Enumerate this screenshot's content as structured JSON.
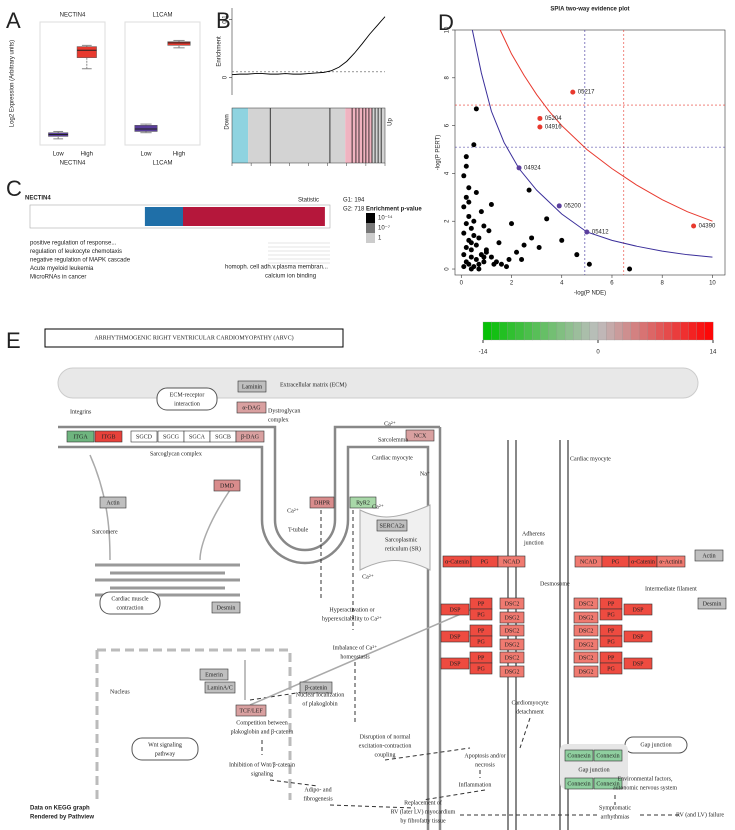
{
  "panel_labels": [
    "A",
    "B",
    "C",
    "D",
    "E"
  ],
  "chart_data": [
    {
      "type": "box",
      "title": "NECTIN4",
      "ylabel": "Log2 Expression (Arbitrary units)",
      "xlabel": "NECTIN4",
      "categories": [
        "Low",
        "High"
      ],
      "ylim": [
        0,
        10
      ],
      "boxes": [
        {
          "low": 0.5,
          "q1": 0.7,
          "median": 0.85,
          "q3": 1.0,
          "high": 1.1,
          "color": "#5a3e9a"
        },
        {
          "low": 6.2,
          "q1": 7.1,
          "median": 7.7,
          "q3": 8.0,
          "high": 8.1,
          "color": "#e8392e"
        }
      ]
    },
    {
      "type": "box",
      "title": "L1CAM",
      "xlabel": "L1CAM",
      "categories": [
        "Low",
        "High"
      ],
      "ylim": [
        0,
        10
      ],
      "boxes": [
        {
          "low": 1.0,
          "q1": 1.1,
          "median": 1.3,
          "q3": 1.6,
          "high": 1.7,
          "color": "#5a3e9a"
        },
        {
          "low": 7.9,
          "q1": 8.1,
          "median": 8.3,
          "q3": 8.4,
          "high": 8.5,
          "color": "#e8392e"
        }
      ]
    },
    {
      "type": "line",
      "ylabel": "Enrichment",
      "xlabel": "Statistic",
      "xlim": [
        0,
        20
      ],
      "x": [
        0,
        1,
        2,
        3,
        4,
        5,
        6,
        7,
        8,
        9,
        10,
        11,
        12,
        13,
        14,
        15,
        16,
        17,
        18,
        19,
        20
      ],
      "values": [
        0.005,
        0.006,
        0.006,
        0.007,
        0.007,
        0.006,
        0.006,
        0.007,
        0.006,
        0.006,
        0.007,
        0.008,
        0.009,
        0.012,
        0.018,
        0.028,
        0.042,
        0.058,
        0.075,
        0.09,
        0.105
      ],
      "ylim": [
        -0.03,
        0.12
      ],
      "yticks": [
        0,
        0.1
      ],
      "threshold": 0.01,
      "barcode": {
        "hits": [
          5.0,
          12.8,
          15.7,
          16.2,
          16.6,
          17.1,
          17.5,
          17.9,
          18.3,
          18.7,
          19.1,
          19.5
        ],
        "bands": [
          {
            "from": 0,
            "to": 2.1,
            "color": "#8fd3e0"
          },
          {
            "from": 2.1,
            "to": 14.8,
            "color": "#d3d3d3"
          },
          {
            "from": 14.8,
            "to": 18.3,
            "color": "#f0b3c0"
          },
          {
            "from": 18.3,
            "to": 20,
            "color": "#d3d3d3"
          }
        ],
        "down_label": "Down",
        "up_label": "Up"
      }
    },
    {
      "type": "scatter",
      "title": "SPIA two-way evidence plot",
      "xlabel": "-log(P NDE)",
      "ylabel": "-log(P PERT)",
      "xlim": [
        -0.25,
        10.5
      ],
      "ylim": [
        -0.25,
        10
      ],
      "xticks": [
        0,
        2,
        4,
        6,
        8,
        10
      ],
      "yticks": [
        0,
        2,
        4,
        6,
        8,
        10
      ],
      "series": [
        {
          "color": "#000000",
          "x": [
            0.1,
            0.2,
            0.3,
            0.1,
            0.4,
            0.5,
            0.2,
            0.6,
            0.3,
            0.1,
            0.7,
            0.4,
            0.2,
            0.8,
            0.5,
            0.3,
            0.1,
            0.9,
            0.6,
            0.2,
            1.0,
            0.4,
            0.3,
            1.2,
            0.5,
            0.1,
            1.4,
            0.7,
            0.2,
            1.6,
            0.8,
            0.4,
            1.9,
            0.3,
            2.2,
            1.1,
            0.6,
            2.5,
            0.2,
            1.3,
            2.8,
            0.9,
            3.1,
            1.5,
            0.5,
            2.0,
            3.4,
            1.8,
            2.4,
            4.0,
            0.7,
            1.0,
            2.7,
            0.6,
            1.2,
            0.4,
            0.9,
            5.1,
            6.7,
            4.6
          ],
          "values": [
            0.1,
            0.3,
            0.2,
            0.6,
            0.5,
            0.1,
            0.9,
            0.4,
            1.2,
            1.5,
            0.2,
            0.8,
            1.9,
            0.6,
            1.4,
            2.2,
            2.6,
            0.3,
            1.0,
            3.0,
            0.8,
            1.7,
            3.4,
            0.5,
            2.0,
            3.9,
            0.3,
            1.3,
            4.3,
            0.2,
            2.4,
            1.1,
            0.4,
            2.8,
            0.7,
            1.6,
            3.2,
            1.0,
            4.7,
            0.2,
            1.3,
            0.5,
            0.9,
            1.1,
            5.2,
            1.9,
            2.1,
            0.1,
            0.4,
            1.2,
            0.0,
            0.7,
            3.3,
            6.7,
            2.7,
            0.0,
            1.8,
            0.2,
            0.0,
            0.6
          ]
        },
        {
          "x": [
            4.44,
            3.13,
            3.13,
            2.3,
            3.9,
            5.0,
            9.25
          ],
          "values": [
            7.4,
            6.3,
            5.94,
            4.23,
            2.64,
            1.55,
            1.8
          ],
          "labels": [
            "05217",
            "05204",
            "04916",
            "04924",
            "05200",
            "05412",
            "04390"
          ],
          "colors": [
            "#e8392e",
            "#e8392e",
            "#e8392e",
            "#5b3f9e",
            "#5b3f9e",
            "#5b3f9e",
            "#e8392e"
          ]
        }
      ],
      "curves": [
        {
          "color": "#3a2e9a",
          "x": [
            0.44,
            0.8,
            1.2,
            1.7,
            2.3,
            3,
            4,
            5,
            6,
            7,
            8,
            9,
            10
          ],
          "values": [
            10,
            8.2,
            6.6,
            5.3,
            4.2,
            3.3,
            2.3,
            1.55,
            1.2,
            0.95,
            0.75,
            0.6,
            0.5
          ]
        },
        {
          "color": "#e8392e",
          "x": [
            1.55,
            2,
            2.5,
            3,
            3.5,
            4,
            5,
            6,
            7,
            8,
            9,
            10
          ],
          "values": [
            10,
            9,
            8.1,
            7.3,
            6.6,
            6,
            5,
            4.2,
            3.5,
            2.9,
            2.4,
            2.0
          ]
        }
      ],
      "vlines": [
        {
          "value": 4.92,
          "color": "#3a2e9a"
        },
        {
          "value": 6.47,
          "color": "#e8392e"
        }
      ],
      "hlines": [
        {
          "value": 5.1,
          "color": "#3a2e9a"
        },
        {
          "value": 6.86,
          "color": "#e8392e"
        }
      ]
    }
  ],
  "enrichment": {
    "title": "NECTIN4",
    "groups": [
      "G1: 194",
      "G2: 718"
    ],
    "legend_title": "Enrichment p-value",
    "legend": [
      {
        "label": "10⁻¹⁴",
        "color": "#000000"
      },
      {
        "label": "10⁻⁷",
        "color": "#777777"
      },
      {
        "label": "1",
        "color": "#cccccc"
      }
    ],
    "xlim": [
      0,
      100
    ],
    "segments": [
      {
        "start": 38.3,
        "end": 51,
        "color": "#1f6fa8"
      },
      {
        "start": 51,
        "end": 98.3,
        "color": "#b5173b"
      }
    ],
    "left_terms": [
      "positive regulation of response...",
      "regulation of leukocyte chemotaxis",
      "negative regulation of MAPK cascade",
      "Acute myeloid leukemia",
      "MicroRNAs in cancer"
    ],
    "right_terms": [
      "homoph. cell adh.v.plasma membran...",
      "calcium ion binding"
    ]
  },
  "pathway": {
    "title": "ARRHYTHMOGENIC RIGHT VENTRICULAR CARDIOMYOPATHY (ARVC)",
    "colorbar": {
      "lim": [
        -14,
        14
      ],
      "ticks": [
        -14,
        0,
        14
      ],
      "low": "#00c000",
      "mid": "#bebebe",
      "high": "#ff0000"
    },
    "nodes": [
      {
        "label": "Laminin",
        "color": "#bfbfbf"
      },
      {
        "label": "α-DAG",
        "color": "#d9a0a0"
      },
      {
        "label": "ITGA",
        "color": "#6fb57f"
      },
      {
        "label": "ITGB",
        "color": "#e8413a"
      },
      {
        "label": "SGCD",
        "color": "#ffffff"
      },
      {
        "label": "SGCG",
        "color": "#ffffff"
      },
      {
        "label": "SGCA",
        "color": "#ffffff"
      },
      {
        "label": "SGCB",
        "color": "#ffffff"
      },
      {
        "label": "β-DAG",
        "color": "#d9a0a0"
      },
      {
        "label": "NCX",
        "color": "#d9a0a0"
      },
      {
        "label": "DMD",
        "color": "#d98c8c"
      },
      {
        "label": "Actin",
        "color": "#bfbfbf"
      },
      {
        "label": "DHPR",
        "color": "#d98c8c"
      },
      {
        "label": "RyR2",
        "color": "#a8d8a8"
      },
      {
        "label": "SERCA2a",
        "color": "#bfbfbf"
      },
      {
        "label": "Desmin",
        "color": "#bfbfbf"
      },
      {
        "label": "Emerin",
        "color": "#bfbfbf"
      },
      {
        "label": "LaminA/C",
        "color": "#bfbfbf"
      },
      {
        "label": "β-catenin",
        "color": "#bfbfbf"
      },
      {
        "label": "TCF/LEF",
        "color": "#d9a0a0"
      },
      {
        "label": "α-Catenin",
        "color": "#ee4b40"
      },
      {
        "label": "PG",
        "color": "#ee4b40"
      },
      {
        "label": "NCAD",
        "color": "#f07a70"
      },
      {
        "label": "NCAD",
        "color": "#f07a70"
      },
      {
        "label": "PG",
        "color": "#ee4b40"
      },
      {
        "label": "α-Catenin",
        "color": "#ee4b40"
      },
      {
        "label": "α-Actinin",
        "color": "#f07a70"
      },
      {
        "label": "Actin",
        "color": "#bfbfbf"
      },
      {
        "label": "Desmin",
        "color": "#bfbfbf"
      },
      {
        "label": "DSP",
        "color": "#ee4b40"
      },
      {
        "label": "PP",
        "color": "#ee4b40"
      },
      {
        "label": "PG",
        "color": "#ee4b40"
      },
      {
        "label": "DSC2",
        "color": "#f07a70"
      },
      {
        "label": "DSC2",
        "color": "#f07a70"
      },
      {
        "label": "PP",
        "color": "#ee4b40"
      },
      {
        "label": "PG",
        "color": "#ee4b40"
      },
      {
        "label": "DSP",
        "color": "#ee4b40"
      },
      {
        "label": "DSG2",
        "color": "#f07a70"
      },
      {
        "label": "DSG2",
        "color": "#f07a70"
      },
      {
        "label": "DSP",
        "color": "#ee4b40"
      },
      {
        "label": "PP",
        "color": "#ee4b40"
      },
      {
        "label": "PG",
        "color": "#ee4b40"
      },
      {
        "label": "DSC2",
        "color": "#f07a70"
      },
      {
        "label": "DSC2",
        "color": "#f07a70"
      },
      {
        "label": "PP",
        "color": "#ee4b40"
      },
      {
        "label": "PG",
        "color": "#ee4b40"
      },
      {
        "label": "DSP",
        "color": "#ee4b40"
      },
      {
        "label": "DSG2",
        "color": "#f07a70"
      },
      {
        "label": "DSG2",
        "color": "#f07a70"
      },
      {
        "label": "DSP",
        "color": "#ee4b40"
      },
      {
        "label": "PP",
        "color": "#ee4b40"
      },
      {
        "label": "PG",
        "color": "#ee4b40"
      },
      {
        "label": "DSC2",
        "color": "#f07a70"
      },
      {
        "label": "DSC2",
        "color": "#f07a70"
      },
      {
        "label": "PP",
        "color": "#ee4b40"
      },
      {
        "label": "PG",
        "color": "#ee4b40"
      },
      {
        "label": "DSP",
        "color": "#ee4b40"
      },
      {
        "label": "DSG2",
        "color": "#f07a70"
      },
      {
        "label": "DSG2",
        "color": "#f07a70"
      },
      {
        "label": "Connexin",
        "color": "#8fcf9f"
      },
      {
        "label": "Connexin",
        "color": "#8fcf9f"
      },
      {
        "label": "Connexin",
        "color": "#8fcf9f"
      },
      {
        "label": "Connexin",
        "color": "#8fcf9f"
      }
    ],
    "labels": [
      "Extracellular matrix (ECM)",
      "ECM-receptor",
      "interaction",
      "Dystroglycan",
      "complex",
      "Integrins",
      "Sarcoglycan complex",
      "Sarcolemma",
      "Cardiac myocyte",
      "Cardiac myocyte",
      "Sarcomere",
      "T-tubule",
      "Sarcoplasmic",
      "reticulum (SR)",
      "Cardiac muscle",
      "contraction",
      "Nucleus",
      "Adherens",
      "junction",
      "Desmosome",
      "Intermediate filament",
      "Hyperactivation or",
      "hyperexcitability to Ca²⁺",
      "Imbalance of Ca²⁺",
      "homeostasis",
      "Nuclear localization",
      "of plakoglobin",
      "Competition between",
      "plakoglobin and β-catenin",
      "Wnt signaling",
      "pathway",
      "Inhibition of Wnt/β-catenin",
      "signaling",
      "Disruption of normal",
      "excitation-contraction",
      "coupling",
      "Apoptosis and/or",
      "necrosis",
      "Inflammation",
      "Adipo- and",
      "fibrogenesis",
      "Replacement of",
      "RV (later LV) myocardium",
      "by fibrofatty tissue",
      "Cardiomyocyte",
      "detachment",
      "Gap junction",
      "Gap junction",
      "Environmental factors,",
      "autonomic nervous system",
      "Symptomatic",
      "arrhythmias",
      "RV (and LV) failure",
      "Ca²⁺",
      "Ca²⁺",
      "Ca²⁺",
      "Na⁺",
      "Ca²⁺"
    ],
    "footer": [
      "Data on KEGG graph",
      "Rendered by Pathview"
    ]
  }
}
